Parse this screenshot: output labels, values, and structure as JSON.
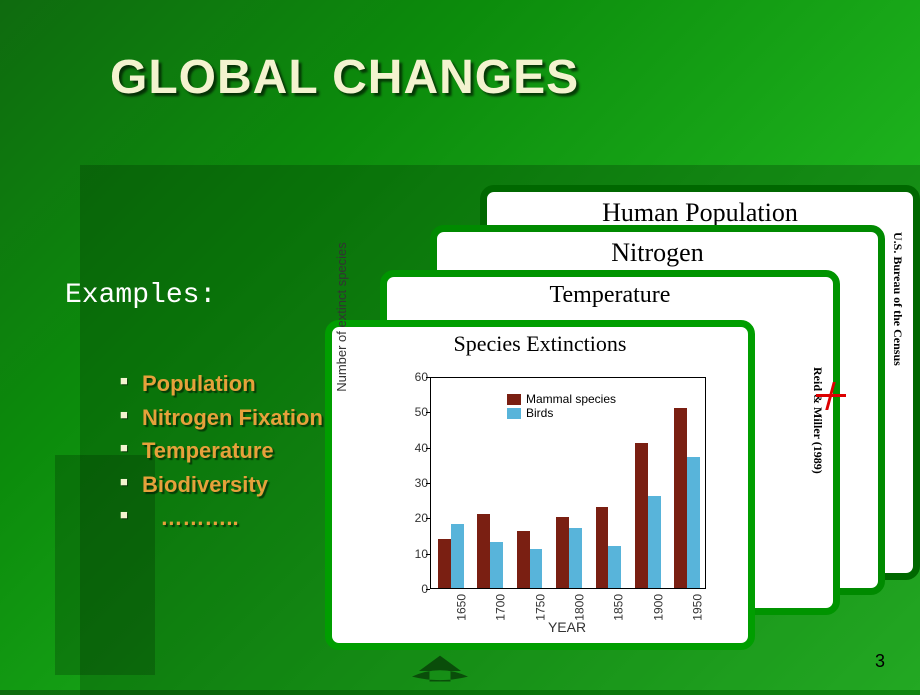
{
  "title": "GLOBAL CHANGES",
  "examples_label": "Examples:",
  "bullets": {
    "b0": "Population",
    "b1": "Nitrogen Fixation",
    "b2": "Temperature",
    "b3": "Biodiversity",
    "b4": "   ……….."
  },
  "cards": {
    "population": {
      "title": "Human Population",
      "source": "U.S. Bureau of the Census",
      "border_color": "#006800"
    },
    "nitrogen": {
      "title": "Nitrogen",
      "border_color": "#008a00"
    },
    "temperature": {
      "title": "Temperature",
      "source": "Reid & Miller (1989)",
      "border_color": "#009400"
    },
    "extinct": {
      "title": "Species Extinctions",
      "border_color": "#009e00"
    }
  },
  "chart": {
    "type": "bar",
    "title": "Species Extinctions",
    "title_fontsize": 22,
    "xlabel": "YEAR",
    "ylabel": "Number of extinct species",
    "label_fontsize": 13,
    "categories": [
      "1650",
      "1700",
      "1750",
      "1800",
      "1850",
      "1900",
      "1950"
    ],
    "series": [
      {
        "name": "Mammal species",
        "color": "#7a1f12",
        "values": [
          14,
          21,
          16,
          20,
          23,
          41,
          51
        ]
      },
      {
        "name": "Birds",
        "color": "#58b4da",
        "values": [
          18,
          13,
          11,
          17,
          12,
          26,
          37
        ]
      }
    ],
    "ylim": [
      0,
      60
    ],
    "ytick_step": 10,
    "plot_border_color": "#000000",
    "background_color": "#ffffff",
    "bar_group_width": 0.65,
    "font_family": "Arial"
  },
  "page_number": "3",
  "background_gradient": [
    "#0f6b0f",
    "#0c8c0c",
    "#1eb41e",
    "#2fd62f"
  ]
}
